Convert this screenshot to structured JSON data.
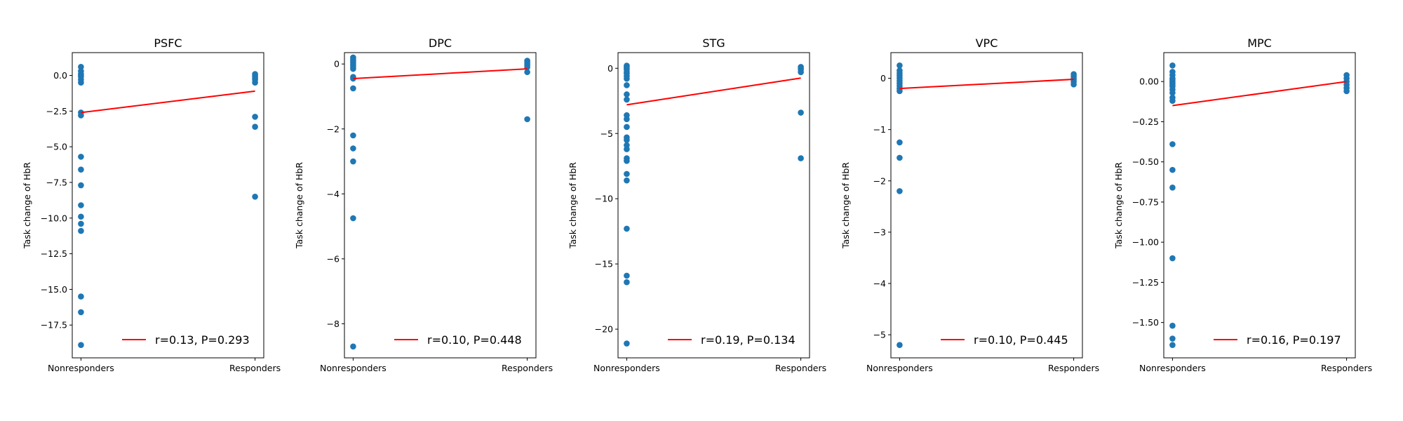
{
  "chart_data": [
    {
      "type": "scatter",
      "title": "PSFC",
      "ylabel": "Task change of HbR",
      "categories": [
        "Nonresponders",
        "Responders"
      ],
      "ylim": [
        -19.8,
        1.6
      ],
      "yticks": [
        0.0,
        -2.5,
        -5.0,
        -7.5,
        -10.0,
        -12.5,
        -15.0,
        -17.5
      ],
      "ytick_labels": [
        "0.0",
        "−2.5",
        "−5.0",
        "−7.5",
        "−10.0",
        "−12.5",
        "−15.0",
        "−17.5"
      ],
      "points": {
        "Nonresponders": [
          0.6,
          0.3,
          0.1,
          0.0,
          -0.1,
          -0.3,
          -0.5,
          -2.6,
          -2.8,
          -5.7,
          -6.6,
          -7.7,
          -9.1,
          -9.9,
          -10.4,
          -10.9,
          -15.5,
          -16.6,
          -18.9
        ],
        "Responders": [
          0.1,
          0.0,
          -0.1,
          -0.2,
          -0.3,
          -0.5,
          -2.9,
          -3.6,
          -8.5
        ]
      },
      "fit_line": [
        -2.6,
        -1.1
      ],
      "legend": "r=0.13, P=0.293",
      "legend_loc": "lower right"
    },
    {
      "type": "scatter",
      "title": "DPC",
      "ylabel": "Task change of HbR",
      "categories": [
        "Nonresponders",
        "Responders"
      ],
      "ylim": [
        -9.05,
        0.35
      ],
      "yticks": [
        0,
        -2,
        -4,
        -6,
        -8
      ],
      "ytick_labels": [
        "0",
        "−2",
        "−4",
        "−6",
        "−8"
      ],
      "points": {
        "Nonresponders": [
          0.2,
          0.15,
          0.1,
          0.05,
          0.0,
          -0.05,
          -0.1,
          -0.15,
          -0.4,
          -0.45,
          -0.75,
          -2.2,
          -2.6,
          -3.0,
          -4.75,
          -8.7
        ],
        "Responders": [
          0.1,
          0.05,
          0.0,
          -0.05,
          -0.1,
          -0.25,
          -1.7
        ]
      },
      "fit_line": [
        -0.45,
        -0.15
      ],
      "legend": "r=0.10, P=0.448",
      "legend_loc": "lower right"
    },
    {
      "type": "scatter",
      "title": "STG",
      "ylabel": "Task change of HbR",
      "categories": [
        "Nonresponders",
        "Responders"
      ],
      "ylim": [
        -22.2,
        1.2
      ],
      "yticks": [
        0,
        -5,
        -10,
        -15,
        -20
      ],
      "ytick_labels": [
        "0",
        "−5",
        "−10",
        "−15",
        "−20"
      ],
      "points": {
        "Nonresponders": [
          0.2,
          0.1,
          0.0,
          -0.1,
          -0.3,
          -0.4,
          -0.6,
          -0.8,
          -1.3,
          -2.0,
          -2.4,
          -3.6,
          -3.9,
          -4.5,
          -5.3,
          -5.5,
          -5.9,
          -6.2,
          -6.9,
          -7.1,
          -8.1,
          -8.6,
          -12.3,
          -15.9,
          -16.4,
          -21.1
        ],
        "Responders": [
          0.1,
          0.0,
          -0.1,
          -0.3,
          -3.4,
          -6.9
        ]
      },
      "fit_line": [
        -2.8,
        -0.75
      ],
      "legend": "r=0.19, P=0.134",
      "legend_loc": "lower right"
    },
    {
      "type": "scatter",
      "title": "VPC",
      "ylabel": "Task change of HbR",
      "categories": [
        "Nonresponders",
        "Responders"
      ],
      "ylim": [
        -5.45,
        0.5
      ],
      "yticks": [
        0,
        -1,
        -2,
        -3,
        -4,
        -5
      ],
      "ytick_labels": [
        "0",
        "−1",
        "−2",
        "−3",
        "−4",
        "−5"
      ],
      "points": {
        "Nonresponders": [
          0.25,
          0.15,
          0.1,
          0.05,
          0.0,
          -0.05,
          -0.1,
          -0.15,
          -0.2,
          -0.25,
          -1.25,
          -1.55,
          -2.2,
          -5.2
        ],
        "Responders": [
          0.08,
          0.04,
          0.0,
          -0.03,
          -0.07,
          -0.12
        ]
      },
      "fit_line": [
        -0.2,
        -0.02
      ],
      "legend": "r=0.10, P=0.445",
      "legend_loc": "lower right"
    },
    {
      "type": "scatter",
      "title": "MPC",
      "ylabel": "Task change of HbR",
      "categories": [
        "Nonresponders",
        "Responders"
      ],
      "ylim": [
        -1.72,
        0.18
      ],
      "yticks": [
        0.0,
        -0.25,
        -0.5,
        -0.75,
        -1.0,
        -1.25,
        -1.5
      ],
      "ytick_labels": [
        "0.00",
        "−0.25",
        "−0.50",
        "−0.75",
        "−1.00",
        "−1.25",
        "−1.50"
      ],
      "points": {
        "Nonresponders": [
          0.1,
          0.06,
          0.04,
          0.02,
          0.01,
          0.0,
          -0.01,
          -0.02,
          -0.03,
          -0.05,
          -0.07,
          -0.1,
          -0.12,
          -0.39,
          -0.55,
          -0.66,
          -1.1,
          -1.52,
          -1.6,
          -1.64
        ],
        "Responders": [
          0.04,
          0.02,
          0.0,
          -0.02,
          -0.04,
          -0.06
        ]
      },
      "fit_line": [
        -0.15,
        0.0
      ],
      "legend": "r=0.16, P=0.197",
      "legend_loc": "lower right"
    }
  ],
  "colors": {
    "points": "#1f77b4",
    "fit_line": "#ff0000",
    "axes": "#000000"
  }
}
